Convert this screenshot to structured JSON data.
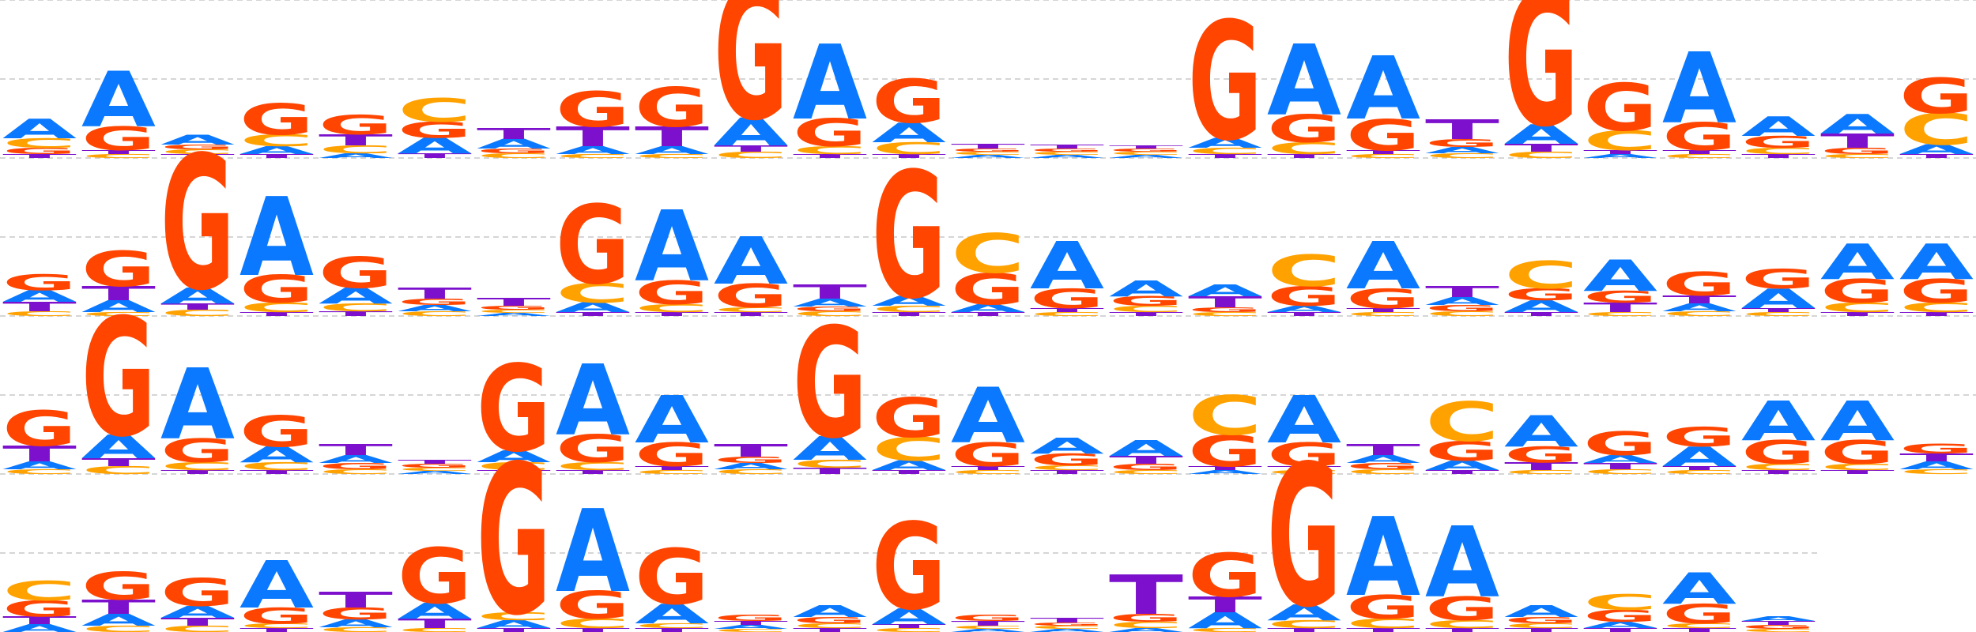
{
  "chart_data": {
    "type": "sequence-logo",
    "alphabet": [
      "A",
      "C",
      "G",
      "T"
    ],
    "colors": {
      "A": "#0a79ff",
      "C": "#ffa200",
      "G": "#ff4500",
      "T": "#7c10cc"
    },
    "ylim": [
      0,
      2
    ],
    "gridlines_at": [
      1,
      2
    ],
    "grid": true,
    "rows": [
      [
        {
          "A": 0.25,
          "C": 0.12,
          "G": 0.08,
          "T": 0.05
        },
        {
          "A": 0.7,
          "C": 0.05,
          "G": 0.3,
          "T": 0.05
        },
        {
          "A": 0.12,
          "C": 0.06,
          "G": 0.06,
          "T": 0.05
        },
        {
          "A": 0.1,
          "C": 0.15,
          "G": 0.4,
          "T": 0.05
        },
        {
          "A": 0.06,
          "C": 0.1,
          "G": 0.25,
          "T": 0.14
        },
        {
          "A": 0.2,
          "C": 0.3,
          "G": 0.2,
          "T": 0.06
        },
        {
          "A": 0.12,
          "C": 0.06,
          "G": 0.06,
          "T": 0.14
        },
        {
          "A": 0.1,
          "C": 0.05,
          "G": 0.45,
          "T": 0.25
        },
        {
          "A": 0.1,
          "C": 0.05,
          "G": 0.5,
          "T": 0.25
        },
        {
          "A": 0.35,
          "C": 0.08,
          "G": 1.7,
          "T": 0.08
        },
        {
          "A": 0.95,
          "C": 0.1,
          "G": 0.35,
          "T": 0.05
        },
        {
          "A": 0.25,
          "C": 0.15,
          "G": 0.55,
          "T": 0.05
        },
        {
          "A": 0.04,
          "C": 0.04,
          "G": 0.04,
          "T": 0.06
        },
        {
          "A": 0.04,
          "C": 0.04,
          "G": 0.04,
          "T": 0.05
        },
        {
          "A": 0.04,
          "C": 0.04,
          "G": 0.04,
          "T": 0.04
        },
        {
          "A": 0.12,
          "C": 0.08,
          "G": 1.5,
          "T": 0.05
        },
        {
          "A": 0.9,
          "C": 0.15,
          "G": 0.35,
          "T": 0.05
        },
        {
          "A": 0.8,
          "C": 0.05,
          "G": 0.4,
          "T": 0.05
        },
        {
          "A": 0.08,
          "C": 0.06,
          "G": 0.1,
          "T": 0.25
        },
        {
          "A": 0.25,
          "C": 0.08,
          "G": 1.7,
          "T": 0.1
        },
        {
          "A": 0.05,
          "C": 0.25,
          "G": 0.6,
          "T": 0.05
        },
        {
          "A": 0.9,
          "C": 0.05,
          "G": 0.35,
          "T": 0.05
        },
        {
          "A": 0.25,
          "C": 0.08,
          "G": 0.15,
          "T": 0.05
        },
        {
          "A": 0.25,
          "C": 0.05,
          "G": 0.08,
          "T": 0.18
        },
        {
          "A": 0.12,
          "C": 0.4,
          "G": 0.45,
          "T": 0.05
        },
        {
          "A": 0.45,
          "C": 0.12,
          "G": 0.25,
          "T": 0.05
        }
      ],
      [
        {
          "A": 0.15,
          "C": 0.06,
          "G": 0.2,
          "T": 0.12
        },
        {
          "A": 0.15,
          "C": 0.05,
          "G": 0.45,
          "T": 0.18
        },
        {
          "A": 0.2,
          "C": 0.08,
          "G": 1.7,
          "T": 0.08
        },
        {
          "A": 1.0,
          "C": 0.12,
          "G": 0.35,
          "T": 0.05
        },
        {
          "A": 0.2,
          "C": 0.1,
          "G": 0.4,
          "T": 0.06
        },
        {
          "A": 0.08,
          "C": 0.06,
          "G": 0.08,
          "T": 0.14
        },
        {
          "A": 0.04,
          "C": 0.04,
          "G": 0.05,
          "T": 0.1
        },
        {
          "A": 0.12,
          "C": 0.25,
          "G": 1.0,
          "T": 0.05
        },
        {
          "A": 0.9,
          "C": 0.1,
          "G": 0.3,
          "T": 0.05
        },
        {
          "A": 0.6,
          "C": 0.06,
          "G": 0.3,
          "T": 0.05
        },
        {
          "A": 0.1,
          "C": 0.06,
          "G": 0.06,
          "T": 0.18
        },
        {
          "A": 0.12,
          "C": 0.08,
          "G": 1.6,
          "T": 0.05
        },
        {
          "A": 0.1,
          "C": 0.5,
          "G": 0.4,
          "T": 0.05
        },
        {
          "A": 0.6,
          "C": 0.05,
          "G": 0.25,
          "T": 0.05
        },
        {
          "A": 0.2,
          "C": 0.08,
          "G": 0.12,
          "T": 0.05
        },
        {
          "A": 0.15,
          "C": 0.05,
          "G": 0.06,
          "T": 0.14
        },
        {
          "A": 0.08,
          "C": 0.4,
          "G": 0.25,
          "T": 0.05
        },
        {
          "A": 0.6,
          "C": 0.05,
          "G": 0.25,
          "T": 0.05
        },
        {
          "A": 0.1,
          "C": 0.06,
          "G": 0.08,
          "T": 0.14
        },
        {
          "A": 0.15,
          "C": 0.35,
          "G": 0.15,
          "T": 0.05
        },
        {
          "A": 0.4,
          "C": 0.05,
          "G": 0.15,
          "T": 0.12
        },
        {
          "A": 0.1,
          "C": 0.06,
          "G": 0.3,
          "T": 0.1
        },
        {
          "A": 0.25,
          "C": 0.05,
          "G": 0.25,
          "T": 0.05
        },
        {
          "A": 0.45,
          "C": 0.12,
          "G": 0.3,
          "T": 0.05
        },
        {
          "A": 0.45,
          "C": 0.12,
          "G": 0.3,
          "T": 0.05
        }
      ],
      [
        {
          "A": 0.1,
          "C": 0.06,
          "G": 0.45,
          "T": 0.2
        },
        {
          "A": 0.3,
          "C": 0.1,
          "G": 1.5,
          "T": 0.1
        },
        {
          "A": 0.9,
          "C": 0.1,
          "G": 0.3,
          "T": 0.05
        },
        {
          "A": 0.2,
          "C": 0.1,
          "G": 0.4,
          "T": 0.05
        },
        {
          "A": 0.1,
          "C": 0.06,
          "G": 0.08,
          "T": 0.14
        },
        {
          "A": 0.04,
          "C": 0.04,
          "G": 0.05,
          "T": 0.05
        },
        {
          "A": 0.15,
          "C": 0.1,
          "G": 1.1,
          "T": 0.05
        },
        {
          "A": 0.9,
          "C": 0.1,
          "G": 0.35,
          "T": 0.05
        },
        {
          "A": 0.6,
          "C": 0.05,
          "G": 0.3,
          "T": 0.05
        },
        {
          "A": 0.08,
          "C": 0.06,
          "G": 0.08,
          "T": 0.16
        },
        {
          "A": 0.3,
          "C": 0.1,
          "G": 1.4,
          "T": 0.08
        },
        {
          "A": 0.12,
          "C": 0.3,
          "G": 0.5,
          "T": 0.05
        },
        {
          "A": 0.7,
          "C": 0.05,
          "G": 0.3,
          "T": 0.05
        },
        {
          "A": 0.2,
          "C": 0.06,
          "G": 0.15,
          "T": 0.05
        },
        {
          "A": 0.2,
          "C": 0.05,
          "G": 0.08,
          "T": 0.1
        },
        {
          "A": 0.05,
          "C": 0.5,
          "G": 0.4,
          "T": 0.05
        },
        {
          "A": 0.6,
          "C": 0.05,
          "G": 0.3,
          "T": 0.05
        },
        {
          "A": 0.1,
          "C": 0.06,
          "G": 0.08,
          "T": 0.14
        },
        {
          "A": 0.12,
          "C": 0.5,
          "G": 0.25,
          "T": 0.05
        },
        {
          "A": 0.4,
          "C": 0.05,
          "G": 0.2,
          "T": 0.1
        },
        {
          "A": 0.1,
          "C": 0.06,
          "G": 0.3,
          "T": 0.08
        },
        {
          "A": 0.25,
          "C": 0.05,
          "G": 0.25,
          "T": 0.05
        },
        {
          "A": 0.5,
          "C": 0.08,
          "G": 0.3,
          "T": 0.05
        },
        {
          "A": 0.5,
          "C": 0.08,
          "G": 0.3,
          "T": 0.05
        },
        {
          "A": 0.1,
          "C": 0.06,
          "G": 0.12,
          "T": 0.1
        }
      ],
      [
        {
          "A": 0.1,
          "C": 0.25,
          "G": 0.2,
          "T": 0.1
        },
        {
          "A": 0.15,
          "C": 0.08,
          "G": 0.35,
          "T": 0.18
        },
        {
          "A": 0.15,
          "C": 0.08,
          "G": 0.35,
          "T": 0.1
        },
        {
          "A": 0.6,
          "C": 0.06,
          "G": 0.2,
          "T": 0.05
        },
        {
          "A": 0.1,
          "C": 0.06,
          "G": 0.15,
          "T": 0.2
        },
        {
          "A": 0.2,
          "C": 0.05,
          "G": 0.7,
          "T": 0.12
        },
        {
          "A": 0.1,
          "C": 0.1,
          "G": 1.9,
          "T": 0.05
        },
        {
          "A": 1.05,
          "C": 0.12,
          "G": 0.35,
          "T": 0.05
        },
        {
          "A": 0.25,
          "C": 0.06,
          "G": 0.7,
          "T": 0.05
        },
        {
          "A": 0.05,
          "C": 0.04,
          "G": 0.08,
          "T": 0.05
        },
        {
          "A": 0.15,
          "C": 0.06,
          "G": 0.08,
          "T": 0.05
        },
        {
          "A": 0.2,
          "C": 0.05,
          "G": 1.1,
          "T": 0.05
        },
        {
          "A": 0.04,
          "C": 0.04,
          "G": 0.08,
          "T": 0.06
        },
        {
          "A": 0.04,
          "C": 0.04,
          "G": 0.04,
          "T": 0.06
        },
        {
          "A": 0.05,
          "C": 0.08,
          "G": 0.1,
          "T": 0.5
        },
        {
          "A": 0.2,
          "C": 0.05,
          "G": 0.55,
          "T": 0.2
        },
        {
          "A": 0.2,
          "C": 0.1,
          "G": 1.8,
          "T": 0.05
        },
        {
          "A": 1.0,
          "C": 0.12,
          "G": 0.3,
          "T": 0.05
        },
        {
          "A": 0.9,
          "C": 0.1,
          "G": 0.3,
          "T": 0.05
        },
        {
          "A": 0.15,
          "C": 0.06,
          "G": 0.08,
          "T": 0.05
        },
        {
          "A": 0.08,
          "C": 0.2,
          "G": 0.15,
          "T": 0.05
        },
        {
          "A": 0.4,
          "C": 0.06,
          "G": 0.25,
          "T": 0.05
        },
        {
          "A": 0.06,
          "C": 0.04,
          "G": 0.05,
          "T": 0.05
        }
      ]
    ]
  }
}
